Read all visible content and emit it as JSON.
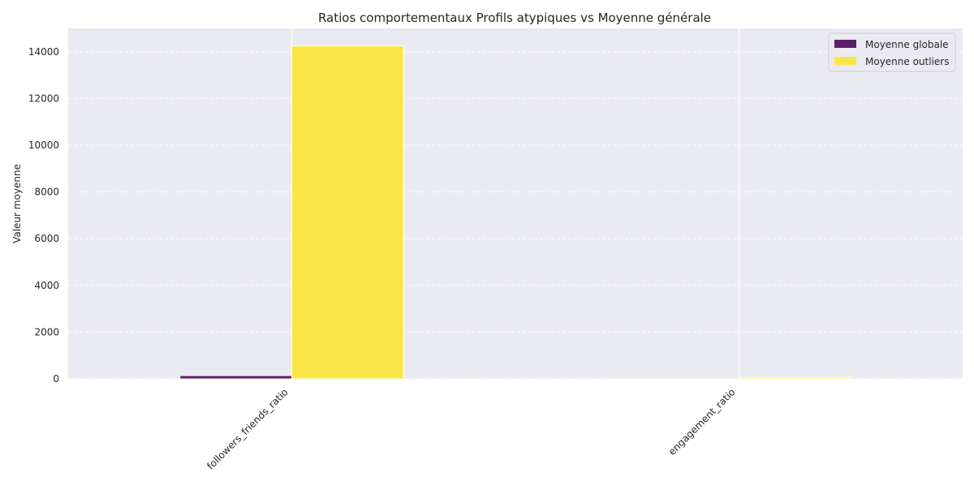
{
  "chart_data": {
    "type": "bar",
    "title": "Ratios comportementaux  Profils atypiques vs Moyenne générale",
    "xlabel": "",
    "ylabel": "Valeur moyenne",
    "categories": [
      "followers_friends_ratio",
      "engagement_ratio"
    ],
    "series": [
      {
        "name": "Moyenne globale",
        "color": "#5b1e6b",
        "values": [
          140,
          3
        ]
      },
      {
        "name": "Moyenne outliers",
        "color": "#f9e646",
        "values": [
          14250,
          60
        ]
      }
    ],
    "ylim": [
      0,
      15000
    ],
    "yticks": [
      0,
      2000,
      4000,
      6000,
      8000,
      10000,
      12000,
      14000
    ],
    "grid": true,
    "legend_position": "top-right",
    "background": "#eaeaf2"
  }
}
